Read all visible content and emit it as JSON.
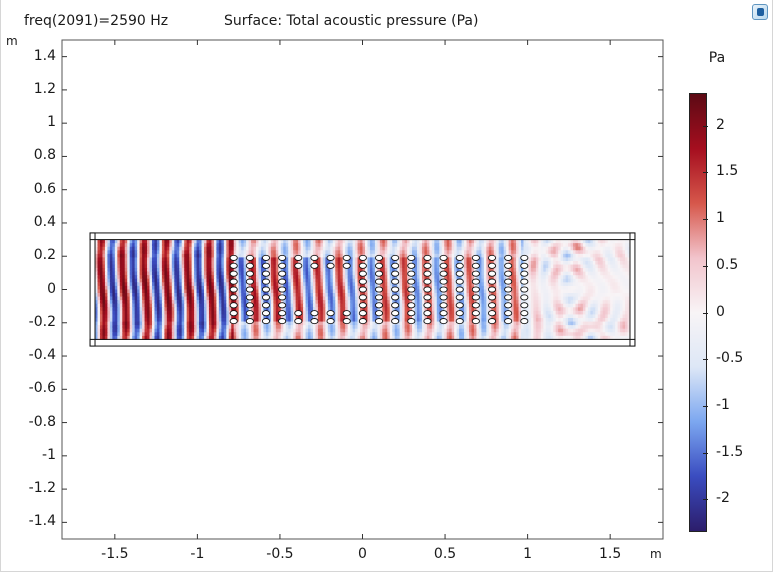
{
  "header": {
    "parameter": "freq(2091)=2590 Hz",
    "surface": "Surface: Total acoustic pressure (Pa)"
  },
  "icons": {
    "logo": "app-logo-icon"
  },
  "chart_data": {
    "type": "heatmap",
    "xlabel": "m",
    "ylabel": "m",
    "xlim": [
      -1.82,
      1.82
    ],
    "ylim": [
      -1.5,
      1.5
    ],
    "x_ticks": [
      "-1.5",
      "-1",
      "-0.5",
      "0",
      "0.5",
      "1",
      "1.5"
    ],
    "x_tick_values": [
      -1.5,
      -1,
      -0.5,
      0,
      0.5,
      1,
      1.5
    ],
    "y_ticks": [
      "1.4",
      "1.2",
      "1",
      "0.8",
      "0.6",
      "0.4",
      "0.2",
      "0",
      "-0.2",
      "-0.4",
      "-0.6",
      "-0.8",
      "-1",
      "-1.2",
      "-1.4"
    ],
    "y_tick_values": [
      1.4,
      1.2,
      1,
      0.8,
      0.6,
      0.4,
      0.2,
      0,
      -0.2,
      -0.4,
      -0.6,
      -0.8,
      -1,
      -1.2,
      -1.4
    ],
    "domain": {
      "x": [
        -1.62,
        1.62
      ],
      "y": [
        -0.3,
        0.3
      ]
    },
    "pml_region": {
      "x": [
        -1.65,
        1.65
      ],
      "y": [
        -0.34,
        0.34
      ]
    },
    "scatterer_array": {
      "x_range": [
        -0.78,
        0.98
      ],
      "y_range": [
        -0.19,
        0.19
      ],
      "columns": 19,
      "rows": 9,
      "empty_region": {
        "x": [
          -0.45,
          -0.08
        ],
        "y": [
          -0.1,
          0.1
        ]
      }
    },
    "colorbar": {
      "title": "Pa",
      "range": [
        -2.35,
        2.35
      ],
      "ticks": [
        "2",
        "1.5",
        "1",
        "0.5",
        "0",
        "-0.5",
        "-1",
        "-1.5",
        "-2"
      ],
      "tick_values": [
        2,
        1.5,
        1,
        0.5,
        0,
        -0.5,
        -1,
        -1.5,
        -2
      ],
      "colors": [
        "#2c1d6b",
        "#3a4cc0",
        "#7ca7f0",
        "#dde7f6",
        "#f8f4f6",
        "#f2c4cc",
        "#d6574b",
        "#a50e1f",
        "#5c0a14"
      ]
    }
  }
}
